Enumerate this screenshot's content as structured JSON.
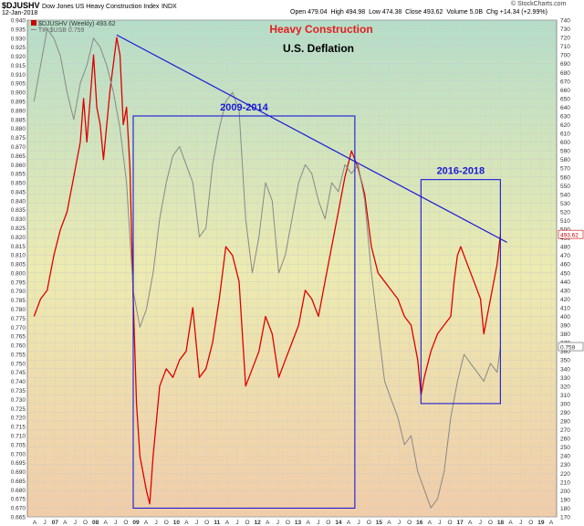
{
  "header": {
    "symbol": "$DJUSHV",
    "index_name": "Dow Jones US Heavy Construction Index",
    "exchange": "INDX",
    "date": "12-Jan-2018",
    "open_label": "Open",
    "open": "479.04",
    "high_label": "High",
    "high": "494.98",
    "low_label": "Low",
    "low": "474.38",
    "close_label": "Close",
    "close": "493.62",
    "volume_label": "Volume",
    "volume": "5.0B",
    "chg_label": "Chg",
    "chg": "+14.34 (+2.99%)",
    "watermark": "© StockCharts.com"
  },
  "legend": [
    {
      "text": "$DJUSHV (Weekly) 493.62",
      "color": "#cc0000"
    },
    {
      "text": "TIP:$USB 0.759",
      "color": "#888888"
    }
  ],
  "chart_data": {
    "type": "line",
    "title": "Heavy Construction",
    "subtitle": "U.S. Deflation",
    "xlabel": "",
    "ylabel": "",
    "grid": true,
    "x_ticks": [
      "A",
      "J",
      "07",
      "A",
      "J",
      "O",
      "08",
      "A",
      "J",
      "O",
      "09",
      "A",
      "J",
      "O",
      "10",
      "A",
      "J",
      "O",
      "11",
      "A",
      "J",
      "O",
      "12",
      "A",
      "J",
      "O",
      "13",
      "A",
      "J",
      "O",
      "14",
      "A",
      "J",
      "O",
      "15",
      "A",
      "J",
      "O",
      "16",
      "A",
      "J",
      "O",
      "17",
      "A",
      "J",
      "O",
      "18",
      "A",
      "J",
      "O",
      "19",
      "A"
    ],
    "left_axis": {
      "min": 0.665,
      "max": 0.94,
      "step": 0.005
    },
    "right_axis": {
      "min": 170,
      "max": 740,
      "step": 10
    },
    "series": [
      {
        "name": "$DJUSHV (Weekly)",
        "axis": "right",
        "color": "#dd0000",
        "last_label": "493.62",
        "points": [
          [
            "2006-04",
            400
          ],
          [
            "2006-06",
            420
          ],
          [
            "2006-08",
            430
          ],
          [
            "2006-10",
            470
          ],
          [
            "2006-12",
            500
          ],
          [
            "2007-02",
            520
          ],
          [
            "2007-04",
            560
          ],
          [
            "2007-06",
            600
          ],
          [
            "2007-07",
            650
          ],
          [
            "2007-08",
            600
          ],
          [
            "2007-10",
            700
          ],
          [
            "2007-11",
            640
          ],
          [
            "2007-12",
            620
          ],
          [
            "2008-01",
            580
          ],
          [
            "2008-02",
            620
          ],
          [
            "2008-03",
            660
          ],
          [
            "2008-04",
            690
          ],
          [
            "2008-05",
            720
          ],
          [
            "2008-06",
            700
          ],
          [
            "2008-07",
            620
          ],
          [
            "2008-08",
            640
          ],
          [
            "2008-09",
            570
          ],
          [
            "2008-10",
            420
          ],
          [
            "2008-11",
            300
          ],
          [
            "2008-12",
            240
          ],
          [
            "2009-02",
            200
          ],
          [
            "2009-03",
            185
          ],
          [
            "2009-04",
            240
          ],
          [
            "2009-05",
            280
          ],
          [
            "2009-06",
            320
          ],
          [
            "2009-08",
            340
          ],
          [
            "2009-10",
            330
          ],
          [
            "2009-12",
            350
          ],
          [
            "2010-02",
            360
          ],
          [
            "2010-04",
            410
          ],
          [
            "2010-06",
            330
          ],
          [
            "2010-08",
            340
          ],
          [
            "2010-10",
            370
          ],
          [
            "2010-12",
            420
          ],
          [
            "2011-02",
            480
          ],
          [
            "2011-04",
            470
          ],
          [
            "2011-06",
            440
          ],
          [
            "2011-08",
            320
          ],
          [
            "2011-10",
            340
          ],
          [
            "2011-12",
            360
          ],
          [
            "2012-02",
            400
          ],
          [
            "2012-04",
            380
          ],
          [
            "2012-06",
            330
          ],
          [
            "2012-08",
            350
          ],
          [
            "2012-10",
            370
          ],
          [
            "2012-12",
            390
          ],
          [
            "2013-02",
            430
          ],
          [
            "2013-04",
            420
          ],
          [
            "2013-06",
            400
          ],
          [
            "2013-08",
            440
          ],
          [
            "2013-10",
            480
          ],
          [
            "2013-12",
            520
          ],
          [
            "2014-02",
            560
          ],
          [
            "2014-04",
            590
          ],
          [
            "2014-06",
            570
          ],
          [
            "2014-08",
            540
          ],
          [
            "2014-10",
            480
          ],
          [
            "2014-12",
            450
          ],
          [
            "2015-02",
            440
          ],
          [
            "2015-04",
            430
          ],
          [
            "2015-06",
            420
          ],
          [
            "2015-08",
            400
          ],
          [
            "2015-10",
            390
          ],
          [
            "2015-12",
            350
          ],
          [
            "2016-01",
            310
          ],
          [
            "2016-02",
            330
          ],
          [
            "2016-04",
            360
          ],
          [
            "2016-06",
            380
          ],
          [
            "2016-08",
            390
          ],
          [
            "2016-10",
            400
          ],
          [
            "2016-11",
            440
          ],
          [
            "2016-12",
            470
          ],
          [
            "2017-01",
            480
          ],
          [
            "2017-03",
            460
          ],
          [
            "2017-05",
            440
          ],
          [
            "2017-07",
            420
          ],
          [
            "2017-08",
            380
          ],
          [
            "2017-10",
            420
          ],
          [
            "2017-12",
            460
          ],
          [
            "2018-01",
            493.62
          ]
        ]
      },
      {
        "name": "TIP:$USB",
        "axis": "left",
        "color": "#888888",
        "last_label": "0.759",
        "points": [
          [
            "2006-04",
            0.895
          ],
          [
            "2006-06",
            0.915
          ],
          [
            "2006-08",
            0.935
          ],
          [
            "2006-10",
            0.93
          ],
          [
            "2006-12",
            0.92
          ],
          [
            "2007-02",
            0.9
          ],
          [
            "2007-04",
            0.885
          ],
          [
            "2007-06",
            0.905
          ],
          [
            "2007-08",
            0.915
          ],
          [
            "2007-10",
            0.93
          ],
          [
            "2007-12",
            0.925
          ],
          [
            "2008-02",
            0.915
          ],
          [
            "2008-04",
            0.9
          ],
          [
            "2008-06",
            0.88
          ],
          [
            "2008-08",
            0.85
          ],
          [
            "2008-10",
            0.79
          ],
          [
            "2008-12",
            0.77
          ],
          [
            "2009-02",
            0.78
          ],
          [
            "2009-04",
            0.8
          ],
          [
            "2009-06",
            0.83
          ],
          [
            "2009-08",
            0.85
          ],
          [
            "2009-10",
            0.865
          ],
          [
            "2009-12",
            0.87
          ],
          [
            "2010-02",
            0.86
          ],
          [
            "2010-04",
            0.85
          ],
          [
            "2010-06",
            0.82
          ],
          [
            "2010-08",
            0.825
          ],
          [
            "2010-10",
            0.86
          ],
          [
            "2010-12",
            0.88
          ],
          [
            "2011-02",
            0.895
          ],
          [
            "2011-04",
            0.9
          ],
          [
            "2011-06",
            0.89
          ],
          [
            "2011-08",
            0.83
          ],
          [
            "2011-10",
            0.8
          ],
          [
            "2011-12",
            0.82
          ],
          [
            "2012-02",
            0.85
          ],
          [
            "2012-04",
            0.84
          ],
          [
            "2012-06",
            0.8
          ],
          [
            "2012-08",
            0.81
          ],
          [
            "2012-10",
            0.83
          ],
          [
            "2012-12",
            0.85
          ],
          [
            "2013-02",
            0.86
          ],
          [
            "2013-04",
            0.855
          ],
          [
            "2013-06",
            0.84
          ],
          [
            "2013-08",
            0.83
          ],
          [
            "2013-10",
            0.85
          ],
          [
            "2013-12",
            0.845
          ],
          [
            "2014-02",
            0.86
          ],
          [
            "2014-04",
            0.855
          ],
          [
            "2014-06",
            0.86
          ],
          [
            "2014-08",
            0.84
          ],
          [
            "2014-10",
            0.8
          ],
          [
            "2014-12",
            0.77
          ],
          [
            "2015-02",
            0.74
          ],
          [
            "2015-04",
            0.73
          ],
          [
            "2015-06",
            0.72
          ],
          [
            "2015-08",
            0.705
          ],
          [
            "2015-10",
            0.71
          ],
          [
            "2015-12",
            0.69
          ],
          [
            "2016-02",
            0.68
          ],
          [
            "2016-04",
            0.67
          ],
          [
            "2016-06",
            0.675
          ],
          [
            "2016-08",
            0.69
          ],
          [
            "2016-10",
            0.72
          ],
          [
            "2016-12",
            0.74
          ],
          [
            "2017-02",
            0.755
          ],
          [
            "2017-04",
            0.75
          ],
          [
            "2017-06",
            0.745
          ],
          [
            "2017-08",
            0.74
          ],
          [
            "2017-10",
            0.75
          ],
          [
            "2017-12",
            0.745
          ],
          [
            "2018-01",
            0.759
          ]
        ]
      }
    ],
    "annotations": [
      {
        "type": "trendline",
        "color": "#1a1ad6",
        "from": [
          "2008-05",
          723
        ],
        "to": [
          "2018-03",
          485
        ]
      },
      {
        "type": "box",
        "label": "2009-2014",
        "color": "#1a1ad6",
        "from": [
          "2008-10",
          180
        ],
        "to": [
          "2014-05",
          630
        ]
      },
      {
        "type": "box",
        "label": "2016-2018",
        "color": "#1a1ad6",
        "from": [
          "2016-01",
          300
        ],
        "to": [
          "2018-01",
          557
        ]
      }
    ],
    "x_range": [
      "2006-02",
      "2019-06"
    ]
  }
}
